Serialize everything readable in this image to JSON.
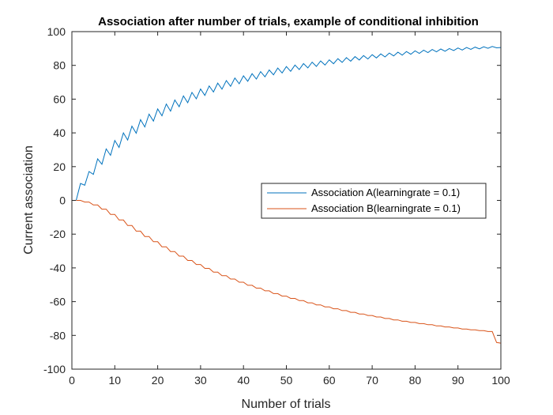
{
  "chart_data": {
    "type": "line",
    "title": "Association after number of trials, example of conditional inhibition",
    "xlabel": "Number of trials",
    "ylabel": "Current association",
    "xlim": [
      0,
      100
    ],
    "ylim": [
      -100,
      100
    ],
    "xticks": [
      0,
      10,
      20,
      30,
      40,
      50,
      60,
      70,
      80,
      90,
      100
    ],
    "yticks": [
      -100,
      -80,
      -60,
      -40,
      -20,
      0,
      20,
      40,
      60,
      80,
      100
    ],
    "grid": false,
    "legend_position": "center-right",
    "series": [
      {
        "name": "Association A(learningrate = 0.1)",
        "color": "#0072BD",
        "x": [
          1,
          2,
          3,
          4,
          5,
          6,
          7,
          8,
          9,
          10,
          11,
          12,
          13,
          14,
          15,
          16,
          17,
          18,
          19,
          20,
          21,
          22,
          23,
          24,
          25,
          26,
          27,
          28,
          29,
          30,
          31,
          32,
          33,
          34,
          35,
          36,
          37,
          38,
          39,
          40,
          41,
          42,
          43,
          44,
          45,
          46,
          47,
          48,
          49,
          50,
          51,
          52,
          53,
          54,
          55,
          56,
          57,
          58,
          59,
          60,
          61,
          62,
          63,
          64,
          65,
          66,
          67,
          68,
          69,
          70,
          71,
          72,
          73,
          74,
          75,
          76,
          77,
          78,
          79,
          80,
          81,
          82,
          83,
          84,
          85,
          86,
          87,
          88,
          89,
          90,
          91,
          92,
          93,
          94,
          95,
          96,
          97,
          98,
          99,
          100
        ],
        "values": [
          0,
          10,
          9,
          17.1,
          15.4,
          24.6,
          21.4,
          30.5,
          26.7,
          35.5,
          31.4,
          40.0,
          35.8,
          44.0,
          39.8,
          47.8,
          43.5,
          51.1,
          47.0,
          54.2,
          50.1,
          57.1,
          52.9,
          59.5,
          55.5,
          61.9,
          57.9,
          64.0,
          60.2,
          66.0,
          62.2,
          67.8,
          64.2,
          69.5,
          65.9,
          71.0,
          67.6,
          72.5,
          69.1,
          73.8,
          70.6,
          75.1,
          71.9,
          76.3,
          73.2,
          77.3,
          74.4,
          78.4,
          75.5,
          79.3,
          76.5,
          80.2,
          77.5,
          81.1,
          78.5,
          81.9,
          79.4,
          82.6,
          80.2,
          83.3,
          81.0,
          84.0,
          81.8,
          84.6,
          82.5,
          85.2,
          83.2,
          85.8,
          83.8,
          86.3,
          84.4,
          86.8,
          85.0,
          87.3,
          85.6,
          87.8,
          86.1,
          88.2,
          86.6,
          88.6,
          87.1,
          89.0,
          87.6,
          89.4,
          88.0,
          89.7,
          88.4,
          90.0,
          88.8,
          90.3,
          89.1,
          90.6,
          89.5,
          90.8,
          89.8,
          91.0,
          90.1,
          91.2,
          90.4,
          90.6
        ]
      },
      {
        "name": "Association B(learningrate = 0.1)",
        "color": "#D95319",
        "x": [
          1,
          2,
          3,
          4,
          5,
          6,
          7,
          8,
          9,
          10,
          11,
          12,
          13,
          14,
          15,
          16,
          17,
          18,
          19,
          20,
          21,
          22,
          23,
          24,
          25,
          26,
          27,
          28,
          29,
          30,
          31,
          32,
          33,
          34,
          35,
          36,
          37,
          38,
          39,
          40,
          41,
          42,
          43,
          44,
          45,
          46,
          47,
          48,
          49,
          50,
          51,
          52,
          53,
          54,
          55,
          56,
          57,
          58,
          59,
          60,
          61,
          62,
          63,
          64,
          65,
          66,
          67,
          68,
          69,
          70,
          71,
          72,
          73,
          74,
          75,
          76,
          77,
          78,
          79,
          80,
          81,
          82,
          83,
          84,
          85,
          86,
          87,
          88,
          89,
          90,
          91,
          92,
          93,
          94,
          95,
          96,
          97,
          98,
          99,
          100
        ],
        "values": [
          0,
          0,
          -1.0,
          -1.0,
          -2.7,
          -2.7,
          -5.2,
          -5.2,
          -8.3,
          -8.3,
          -11.6,
          -11.6,
          -14.9,
          -14.9,
          -18.2,
          -18.2,
          -21.4,
          -21.4,
          -24.5,
          -24.5,
          -27.5,
          -27.5,
          -30.3,
          -30.3,
          -33.0,
          -33.0,
          -35.6,
          -35.6,
          -38.0,
          -38.0,
          -40.3,
          -40.3,
          -42.5,
          -42.5,
          -44.6,
          -44.6,
          -46.6,
          -46.6,
          -48.5,
          -48.5,
          -50.3,
          -50.3,
          -52.0,
          -52.0,
          -53.6,
          -53.6,
          -55.2,
          -55.2,
          -56.7,
          -56.7,
          -58.1,
          -58.1,
          -59.4,
          -59.4,
          -60.7,
          -60.7,
          -61.9,
          -61.9,
          -63.1,
          -63.1,
          -64.2,
          -64.2,
          -65.3,
          -65.3,
          -66.3,
          -66.3,
          -67.3,
          -67.3,
          -68.2,
          -68.2,
          -69.1,
          -69.1,
          -70.0,
          -70.0,
          -70.8,
          -70.8,
          -71.6,
          -71.6,
          -72.3,
          -72.3,
          -73.0,
          -73.0,
          -73.7,
          -73.7,
          -74.4,
          -74.4,
          -75.0,
          -75.0,
          -75.6,
          -75.6,
          -76.2,
          -76.2,
          -76.7,
          -76.7,
          -77.2,
          -77.2,
          -77.7,
          -77.7,
          -84.2,
          -84.6
        ]
      }
    ]
  }
}
